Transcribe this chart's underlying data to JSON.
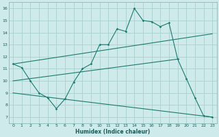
{
  "xlabel": "Humidex (Indice chaleur)",
  "bg_color": "#ceeaea",
  "grid_color": "#aacfcf",
  "line_color": "#1a7a6e",
  "xlim": [
    -0.5,
    23.5
  ],
  "ylim": [
    6.5,
    16.5
  ],
  "yticks": [
    7,
    8,
    9,
    10,
    11,
    12,
    13,
    14,
    15,
    16
  ],
  "xticks": [
    0,
    1,
    2,
    3,
    4,
    5,
    6,
    7,
    8,
    9,
    10,
    11,
    12,
    13,
    14,
    15,
    16,
    17,
    18,
    19,
    20,
    21,
    22,
    23
  ],
  "line1_x": [
    0,
    1,
    2,
    3,
    4,
    5,
    6,
    7,
    8,
    9,
    10,
    11,
    12,
    13,
    14,
    15,
    16,
    17,
    18,
    19,
    20,
    21,
    22,
    23
  ],
  "line1_y": [
    11.4,
    11.1,
    10.0,
    9.0,
    8.6,
    7.7,
    8.5,
    9.9,
    11.0,
    11.4,
    13.0,
    13.0,
    14.3,
    14.1,
    16.0,
    15.0,
    14.9,
    14.5,
    14.8,
    11.8,
    10.2,
    8.6,
    7.1,
    7.0
  ],
  "line2_x": [
    0,
    23
  ],
  "line2_y": [
    11.4,
    13.9
  ],
  "line3_x": [
    0,
    19
  ],
  "line3_y": [
    10.0,
    11.8
  ],
  "line4_x": [
    0,
    23
  ],
  "line4_y": [
    9.0,
    7.0
  ]
}
